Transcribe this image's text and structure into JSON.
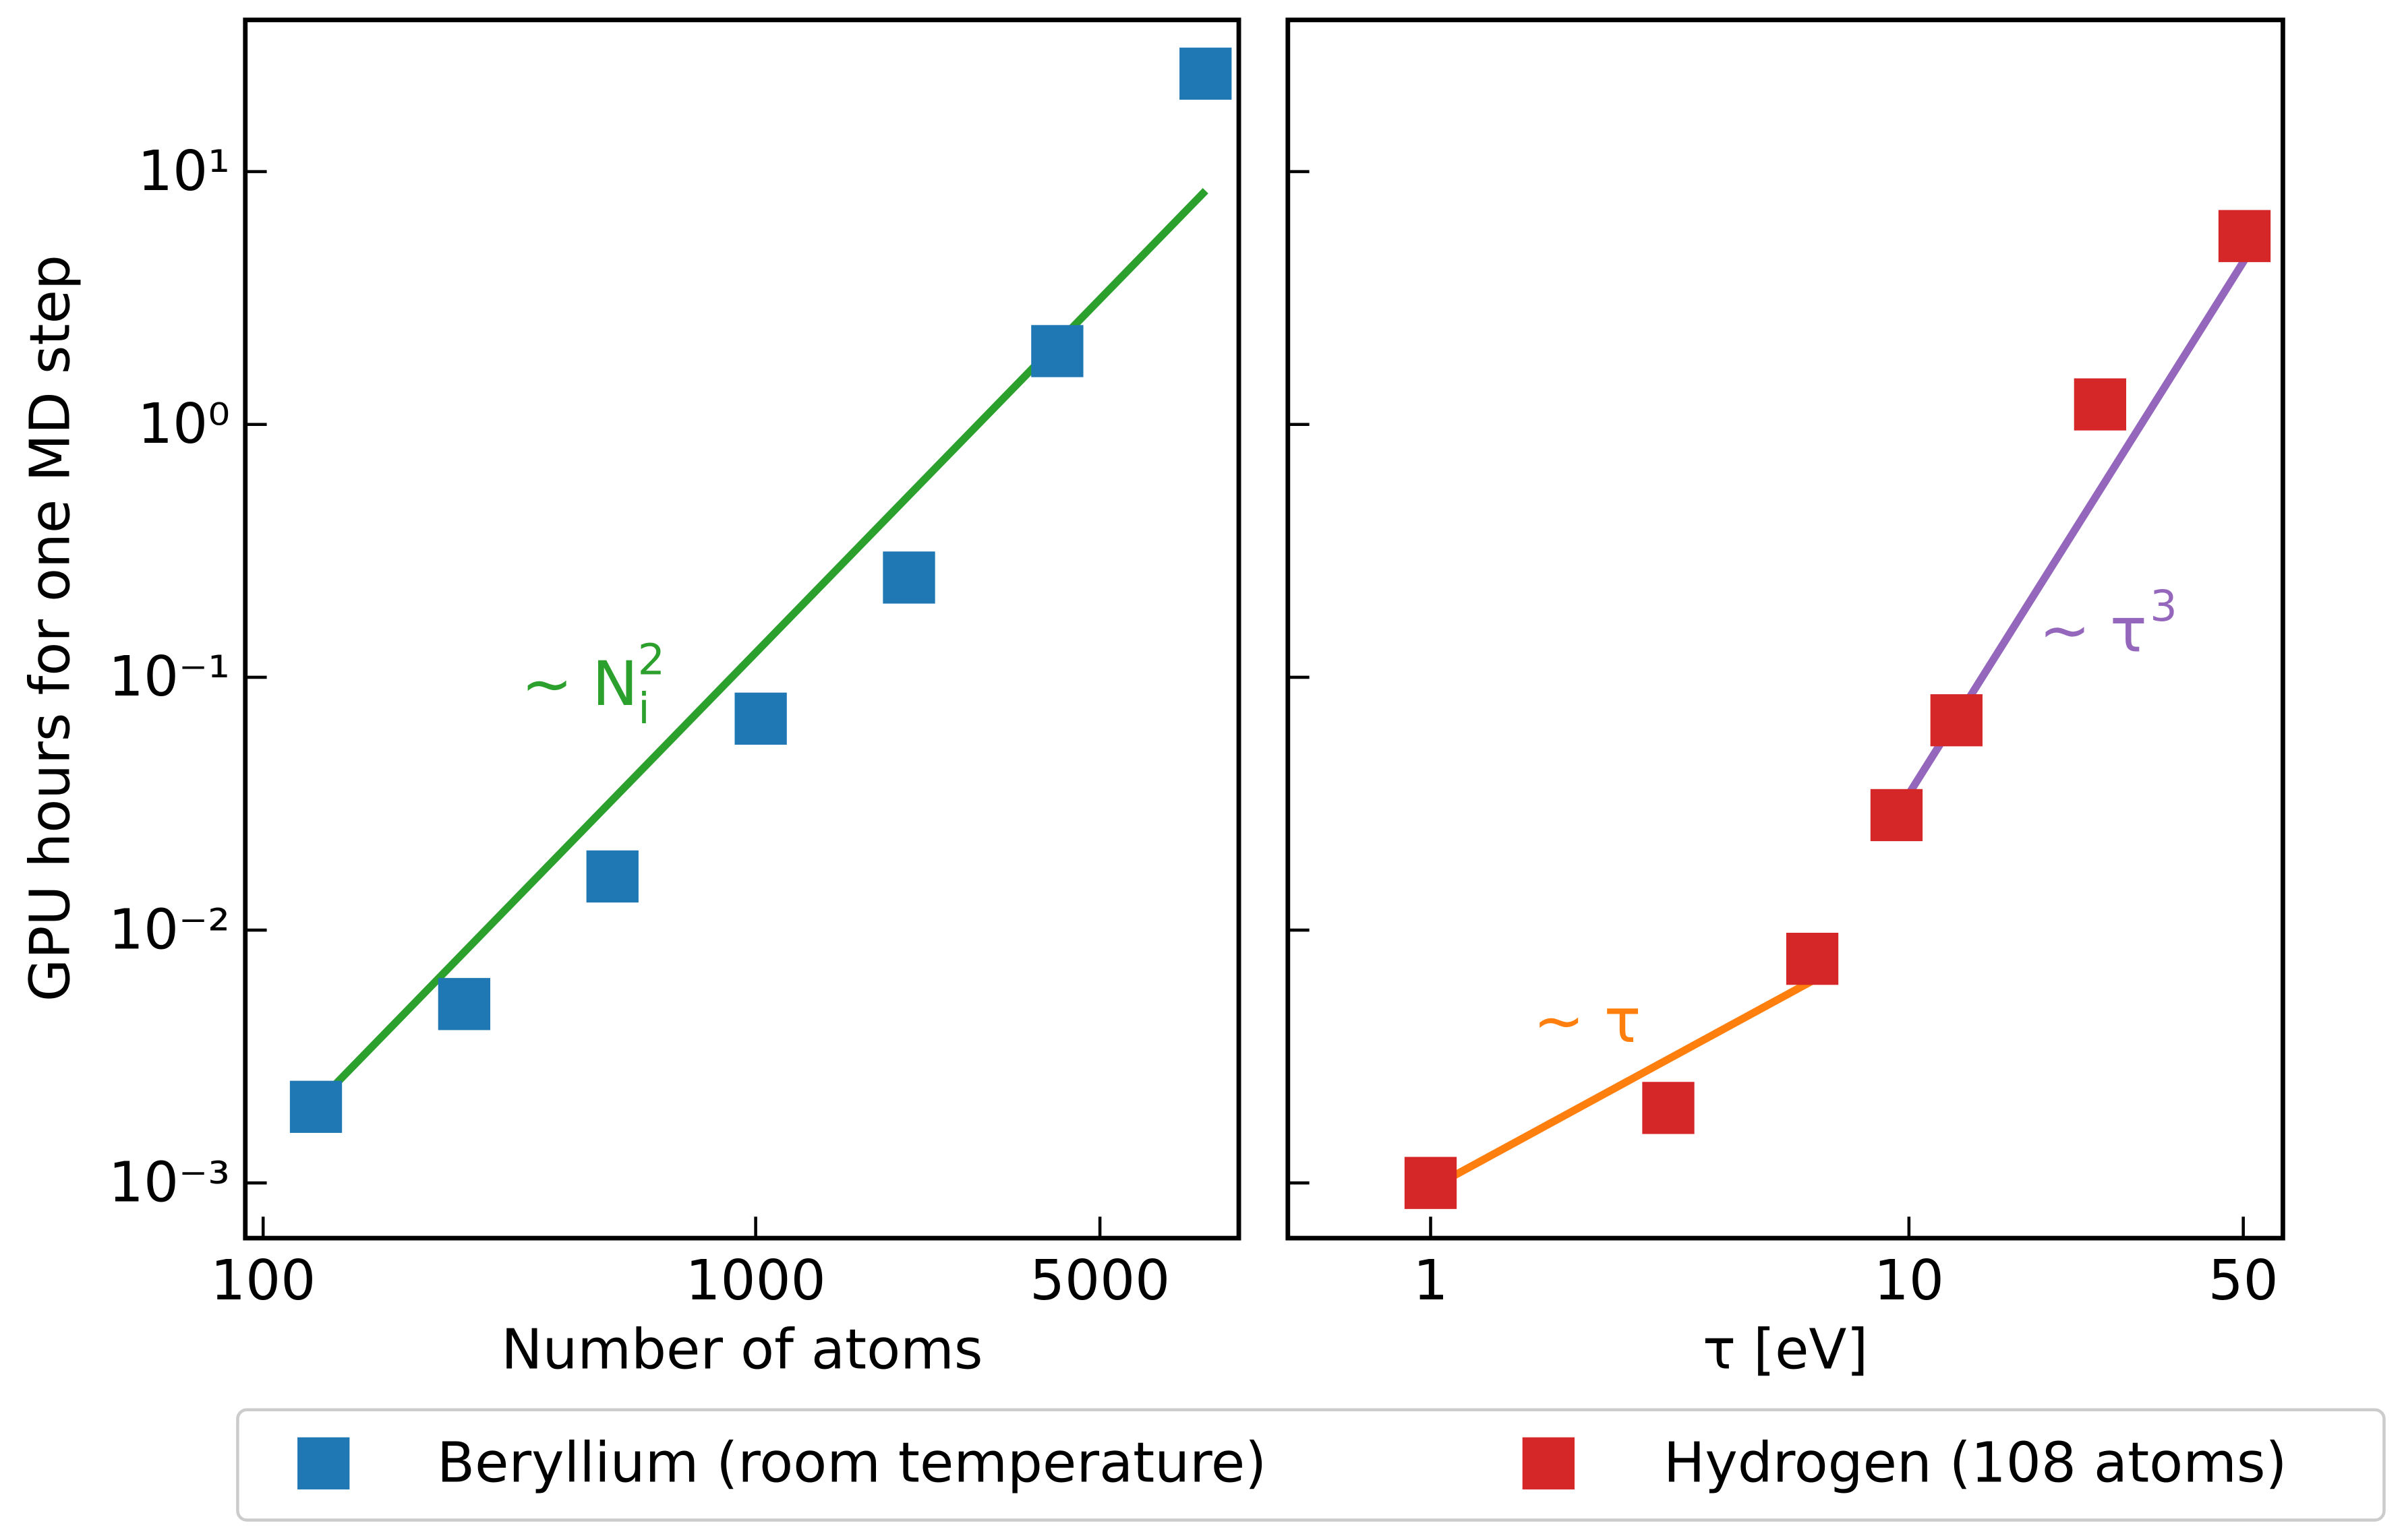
{
  "chart_data": [
    {
      "type": "scatter",
      "x_log": true,
      "y_log": true,
      "xlabel": "Number of atoms",
      "ylabel": "GPU hours for one MD step",
      "xlim": [
        92,
        9570
      ],
      "ylim": [
        0.000605,
        39.8
      ],
      "xticks": [
        100,
        1000,
        5000
      ],
      "yticks": [
        {
          "value": 10,
          "label": "10¹"
        },
        {
          "value": 1,
          "label": "10⁰"
        },
        {
          "value": 0.1,
          "label": "10⁻¹"
        },
        {
          "value": 0.01,
          "label": "10⁻²"
        },
        {
          "value": 0.001,
          "label": "10⁻³"
        }
      ],
      "show_ytick_labels": true,
      "series": [
        {
          "name": "Beryllium (room temperature)",
          "mode": "markers",
          "color": "#1f77b4",
          "x": [
            128,
            256,
            512,
            1024,
            2048,
            4096,
            8192
          ],
          "values": [
            0.002,
            0.0051,
            0.0163,
            0.0686,
            0.248,
            1.95,
            24.4
          ]
        },
        {
          "mode": "line",
          "color": "#2ca02c",
          "x": [
            136,
            8192
          ],
          "values": [
            0.00231,
            8.4
          ]
        }
      ],
      "annotations": [
        {
          "text": "∼ N",
          "sub": "i",
          "sup": "2",
          "color": "#2ca02c"
        }
      ]
    },
    {
      "type": "scatter",
      "x_log": true,
      "y_log": true,
      "xlabel": "τ [eV]",
      "xlim": [
        0.503,
        60.5
      ],
      "ylim": [
        0.000605,
        39.8
      ],
      "xticks": [
        1,
        10,
        50
      ],
      "yticks": [
        10,
        1,
        0.1,
        0.01,
        0.001
      ],
      "show_ytick_labels": false,
      "series": [
        {
          "name": "Hydrogen (108 atoms)",
          "mode": "markers",
          "color": "#d62728",
          "x": [
            1,
            3.14,
            6.28,
            9.42,
            12.57,
            25.1,
            50.3
          ],
          "values": [
            0.001,
            0.00198,
            0.0077,
            0.0285,
            0.0676,
            1.2,
            5.56
          ]
        },
        {
          "mode": "line",
          "color": "#ff7f0e",
          "x": [
            1.09,
            6.28
          ],
          "values": [
            0.00104,
            0.0063
          ]
        },
        {
          "mode": "line",
          "color": "#9467bd",
          "x": [
            9.6,
            50.7
          ],
          "values": [
            0.0306,
            4.58
          ]
        }
      ],
      "annotations": [
        {
          "text": "∼ τ",
          "color": "#ff7f0e"
        },
        {
          "text": "∼ τ",
          "sup": "3",
          "color": "#9467bd"
        }
      ]
    }
  ]
}
